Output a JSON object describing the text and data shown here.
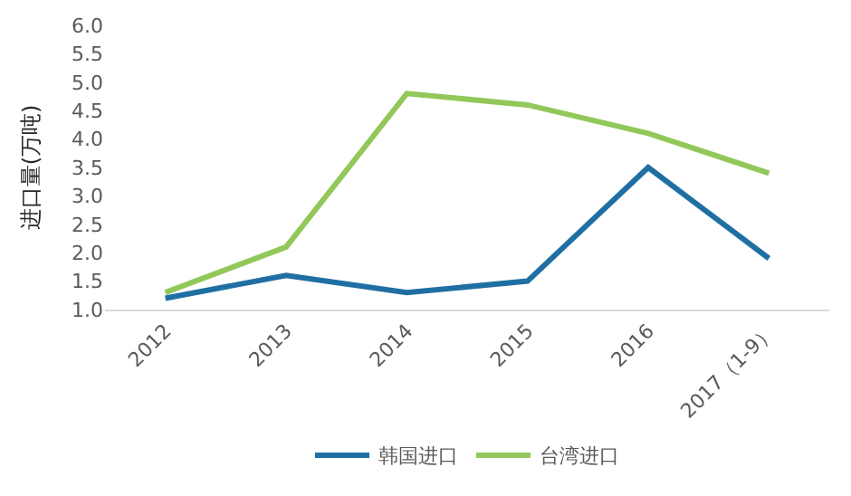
{
  "chart_data": {
    "type": "line",
    "ylabel": "进口量(万吨)",
    "categories": [
      "2012",
      "2013",
      "2014",
      "2015",
      "2016",
      "2017（1-9）"
    ],
    "series": [
      {
        "name": "韩国进口",
        "color": "#1f6fa3",
        "values": [
          1.2,
          1.6,
          1.3,
          1.5,
          3.5,
          1.9
        ]
      },
      {
        "name": "台湾进口",
        "color": "#92c85a",
        "values": [
          1.3,
          2.1,
          4.8,
          4.6,
          4.1,
          3.4
        ]
      }
    ],
    "ylim": [
      1.0,
      6.0
    ],
    "yticks": [
      {
        "value": 1.0,
        "label": "1.0"
      },
      {
        "value": 1.5,
        "label": "1.5"
      },
      {
        "value": 2.0,
        "label": "2.0"
      },
      {
        "value": 2.5,
        "label": "2.5"
      },
      {
        "value": 3.0,
        "label": "3.0"
      },
      {
        "value": 3.5,
        "label": "3.5"
      },
      {
        "value": 4.0,
        "label": "4.0"
      },
      {
        "value": 4.5,
        "label": "4.5"
      },
      {
        "value": 5.0,
        "label": "5.0"
      },
      {
        "value": 5.5,
        "label": "5.5"
      },
      {
        "value": 6.0,
        "label": "6.0"
      }
    ],
    "legend": "bottom",
    "marker": "none",
    "line_style": "solid"
  }
}
